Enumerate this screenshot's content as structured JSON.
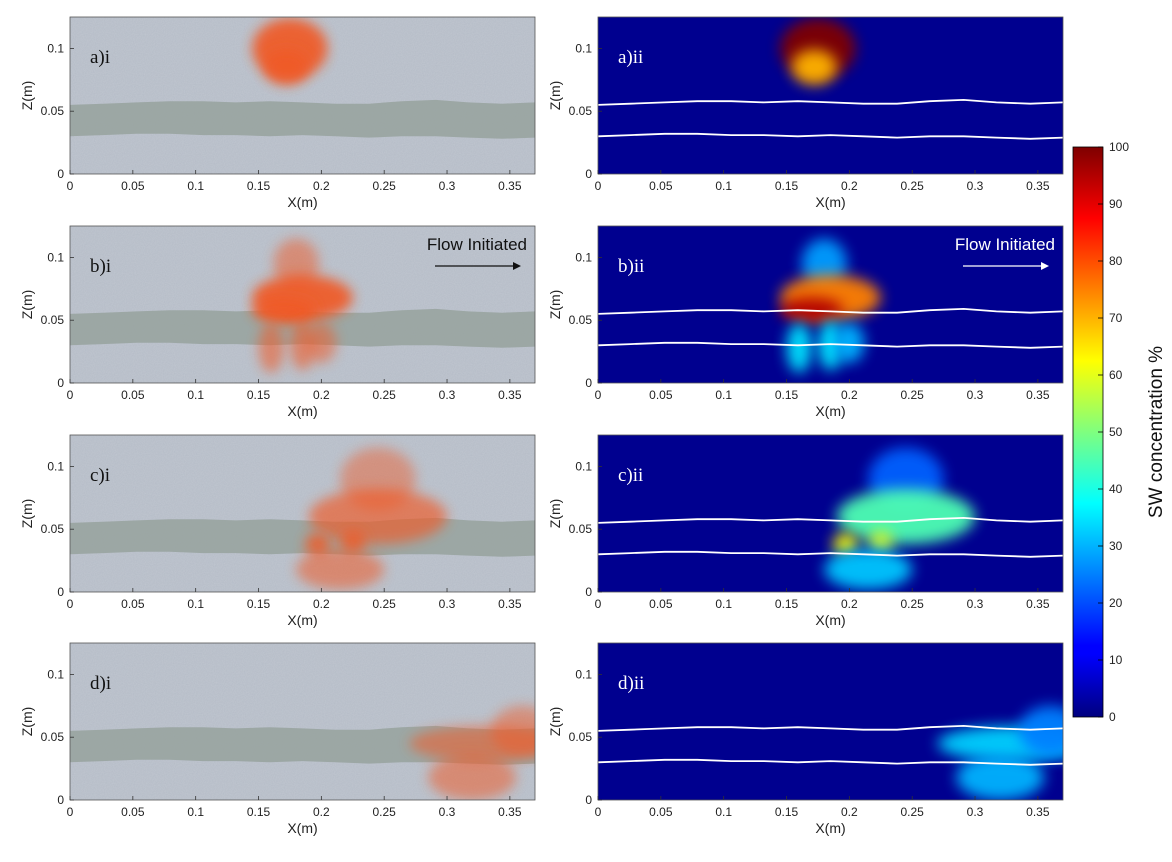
{
  "figure": {
    "colorbar": {
      "label": "SW concentration %",
      "ticks": [
        "0",
        "10",
        "20",
        "30",
        "40",
        "50",
        "60",
        "70",
        "80",
        "90",
        "100"
      ],
      "range": [
        0,
        100
      ],
      "colormap": "jet"
    },
    "flow_label": "Flow Initiated",
    "panels": [
      {
        "id": "ai",
        "row": 0,
        "col": 0,
        "label": "a)i",
        "style": "photo",
        "flow": false
      },
      {
        "id": "aii",
        "row": 0,
        "col": 1,
        "label": "a)ii",
        "style": "jet",
        "flow": false
      },
      {
        "id": "bi",
        "row": 1,
        "col": 0,
        "label": "b)i",
        "style": "photo",
        "flow": true
      },
      {
        "id": "bii",
        "row": 1,
        "col": 1,
        "label": "b)ii",
        "style": "jet",
        "flow": true
      },
      {
        "id": "ci",
        "row": 2,
        "col": 0,
        "label": "c)i",
        "style": "photo",
        "flow": false
      },
      {
        "id": "cii",
        "row": 2,
        "col": 1,
        "label": "c)ii",
        "style": "jet",
        "flow": false
      },
      {
        "id": "di",
        "row": 3,
        "col": 0,
        "label": "d)i",
        "style": "photo",
        "flow": false
      },
      {
        "id": "dii",
        "row": 3,
        "col": 1,
        "label": "d)ii",
        "style": "jet",
        "flow": false
      }
    ]
  },
  "chart_data": {
    "type": "heatmap",
    "xlabel": "X(m)",
    "ylabel": "Z(m)",
    "xlim": [
      0,
      0.37
    ],
    "ylim": [
      0,
      0.125
    ],
    "xticks": [
      "0",
      "0.05",
      "0.1",
      "0.15",
      "0.2",
      "0.25",
      "0.3",
      "0.35"
    ],
    "yticks": [
      "0",
      "0.05",
      "0.1"
    ],
    "value_unit": "SW concentration %",
    "low_permeability_layer": {
      "upper_boundary_z": [
        0.055,
        0.056,
        0.057,
        0.058,
        0.058,
        0.057,
        0.058,
        0.057,
        0.056,
        0.056,
        0.058,
        0.059,
        0.057,
        0.056,
        0.057
      ],
      "lower_boundary_z": [
        0.03,
        0.031,
        0.032,
        0.032,
        0.031,
        0.031,
        0.03,
        0.031,
        0.03,
        0.029,
        0.03,
        0.03,
        0.029,
        0.028,
        0.029
      ],
      "boundary_x": [
        0.0,
        0.026,
        0.053,
        0.079,
        0.106,
        0.132,
        0.159,
        0.185,
        0.211,
        0.238,
        0.264,
        0.291,
        0.317,
        0.344,
        0.37
      ]
    },
    "plumes": [
      {
        "panel": "a",
        "blobs": [
          {
            "x": 0.175,
            "z": 0.1,
            "rx": 0.03,
            "rz": 0.024,
            "value": 100
          },
          {
            "x": 0.172,
            "z": 0.085,
            "rx": 0.018,
            "rz": 0.014,
            "value": 70
          }
        ]
      },
      {
        "panel": "b",
        "blobs": [
          {
            "x": 0.18,
            "z": 0.095,
            "rx": 0.018,
            "rz": 0.02,
            "value": 28
          },
          {
            "x": 0.185,
            "z": 0.068,
            "rx": 0.04,
            "rz": 0.018,
            "value": 75
          },
          {
            "x": 0.17,
            "z": 0.058,
            "rx": 0.025,
            "rz": 0.01,
            "value": 95
          },
          {
            "x": 0.16,
            "z": 0.028,
            "rx": 0.01,
            "rz": 0.02,
            "value": 35
          },
          {
            "x": 0.185,
            "z": 0.03,
            "rx": 0.01,
            "rz": 0.02,
            "value": 35
          },
          {
            "x": 0.2,
            "z": 0.032,
            "rx": 0.012,
            "rz": 0.016,
            "value": 30
          }
        ]
      },
      {
        "panel": "c",
        "blobs": [
          {
            "x": 0.245,
            "z": 0.09,
            "rx": 0.03,
            "rz": 0.025,
            "value": 22
          },
          {
            "x": 0.245,
            "z": 0.06,
            "rx": 0.055,
            "rz": 0.022,
            "value": 45
          },
          {
            "x": 0.197,
            "z": 0.038,
            "rx": 0.01,
            "rz": 0.009,
            "value": 62
          },
          {
            "x": 0.225,
            "z": 0.04,
            "rx": 0.01,
            "rz": 0.009,
            "value": 58
          },
          {
            "x": 0.215,
            "z": 0.018,
            "rx": 0.035,
            "rz": 0.016,
            "value": 32
          }
        ]
      },
      {
        "panel": "d",
        "blobs": [
          {
            "x": 0.33,
            "z": 0.045,
            "rx": 0.06,
            "rz": 0.014,
            "value": 33
          },
          {
            "x": 0.32,
            "z": 0.018,
            "rx": 0.035,
            "rz": 0.018,
            "value": 30
          },
          {
            "x": 0.36,
            "z": 0.055,
            "rx": 0.025,
            "rz": 0.02,
            "value": 25
          }
        ]
      }
    ]
  }
}
